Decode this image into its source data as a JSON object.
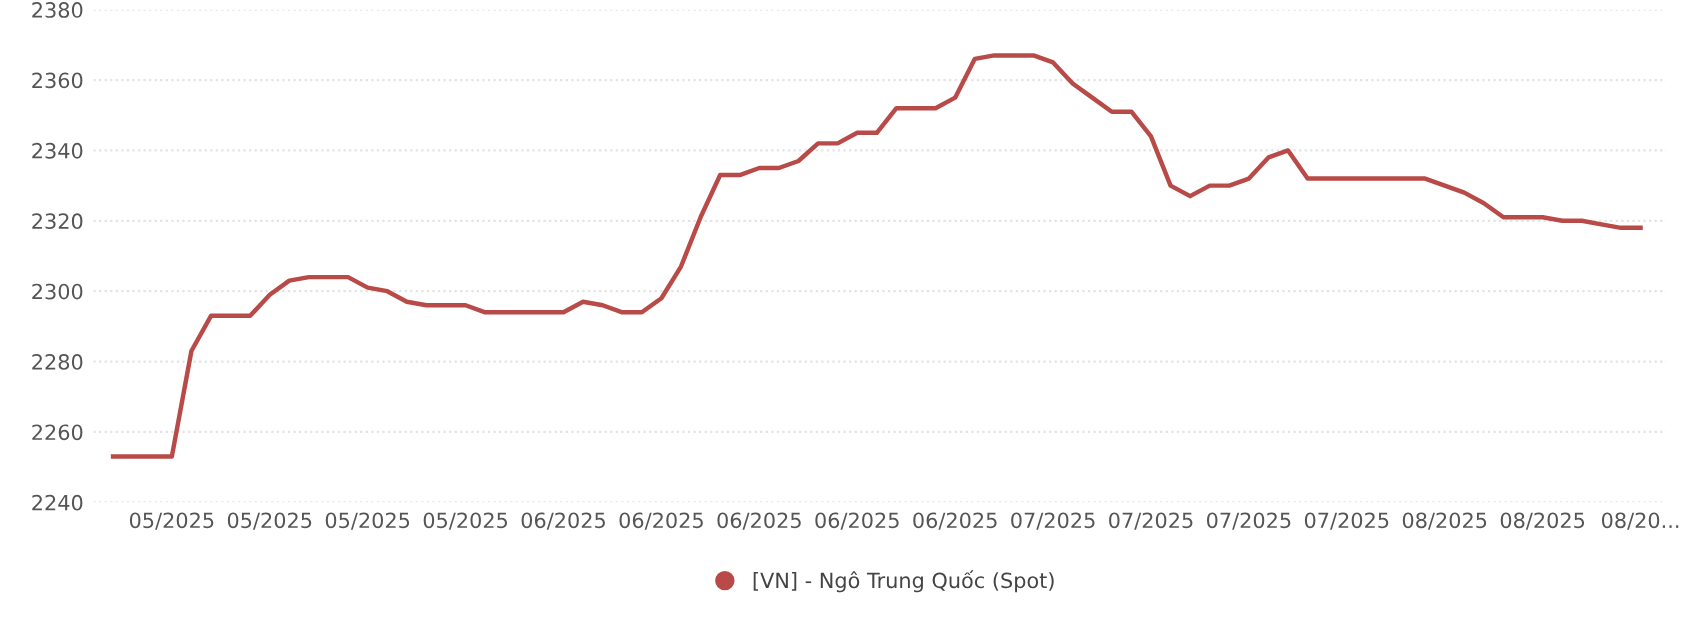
{
  "chart_data": {
    "type": "line",
    "categories": [
      null,
      null,
      null,
      "05/2025",
      null,
      null,
      null,
      null,
      "05/2025",
      null,
      null,
      null,
      null,
      "05/2025",
      null,
      null,
      null,
      null,
      "05/2025",
      null,
      null,
      null,
      null,
      "06/2025",
      null,
      null,
      null,
      null,
      "06/2025",
      null,
      null,
      null,
      null,
      "06/2025",
      null,
      null,
      null,
      null,
      "06/2025",
      null,
      null,
      null,
      null,
      "06/2025",
      null,
      null,
      null,
      null,
      "07/2025",
      null,
      null,
      null,
      null,
      "07/2025",
      null,
      null,
      null,
      null,
      "07/2025",
      null,
      null,
      null,
      null,
      "07/2025",
      null,
      null,
      null,
      null,
      "08/2025",
      null,
      null,
      null,
      null,
      "08/2025",
      null,
      null,
      null,
      null,
      "08/20..."
    ],
    "series": [
      {
        "name": "[VN] - Ngô Trung Quốc (Spot)",
        "color": "#b84a48",
        "values": [
          2253,
          2253,
          2253,
          2253,
          2283,
          2293,
          2293,
          2293,
          2299,
          2303,
          2304,
          2304,
          2304,
          2301,
          2300,
          2297,
          2296,
          2296,
          2296,
          2294,
          2294,
          2294,
          2294,
          2294,
          2297,
          2296,
          2294,
          2294,
          2298,
          2307,
          2321,
          2333,
          2333,
          2335,
          2335,
          2337,
          2342,
          2342,
          2345,
          2345,
          2352,
          2352,
          2352,
          2355,
          2366,
          2367,
          2367,
          2367,
          2365,
          2359,
          2355,
          2351,
          2351,
          2344,
          2330,
          2327,
          2330,
          2330,
          2332,
          2338,
          2340,
          2332,
          2332,
          2332,
          2332,
          2332,
          2332,
          2332,
          2330,
          2328,
          2325,
          2321,
          2321,
          2321,
          2320,
          2320,
          2319,
          2318,
          2318
        ]
      }
    ],
    "ylim": [
      2240,
      2380
    ],
    "yticks": [
      2240,
      2260,
      2280,
      2300,
      2320,
      2340,
      2360,
      2380
    ],
    "grid": "y",
    "legend": "bottom",
    "marker": "none",
    "line_style": "solid"
  }
}
